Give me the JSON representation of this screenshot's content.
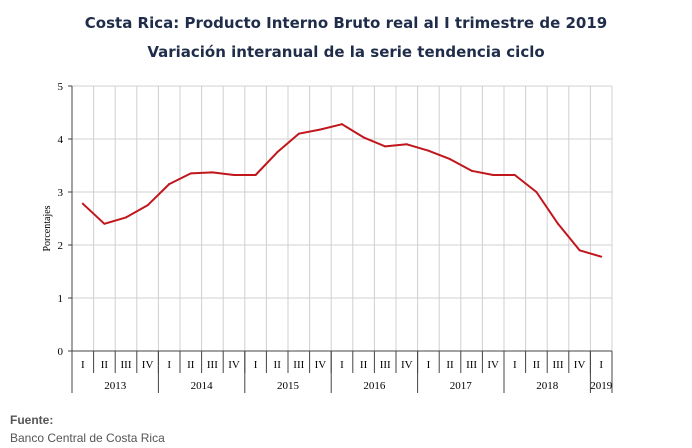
{
  "title": "Costa Rica: Producto Interno Bruto real al I trimestre de 2019",
  "subtitle": "Variación interanual de la serie tendencia ciclo",
  "source": {
    "label": "Fuente:",
    "value": "Banco Central de Costa Rica"
  },
  "chart_data": {
    "type": "line",
    "title": "Costa Rica: Producto Interno Bruto real al I trimestre de 2019",
    "subtitle": "Variación interanual de la serie tendencia ciclo",
    "ylabel": "Porcentajes",
    "xlabel": "",
    "ylim": [
      0,
      5
    ],
    "yticks": [
      0,
      1,
      2,
      3,
      4,
      5
    ],
    "grid": true,
    "line_color": "#c0161c",
    "quarters": [
      "I",
      "II",
      "III",
      "IV",
      "I",
      "II",
      "III",
      "IV",
      "I",
      "II",
      "III",
      "IV",
      "I",
      "II",
      "III",
      "IV",
      "I",
      "II",
      "III",
      "IV",
      "I",
      "II",
      "III",
      "IV",
      "I"
    ],
    "years": [
      {
        "label": "2013",
        "quarters": 4
      },
      {
        "label": "2014",
        "quarters": 4
      },
      {
        "label": "2015",
        "quarters": 4
      },
      {
        "label": "2016",
        "quarters": 4
      },
      {
        "label": "2017",
        "quarters": 4
      },
      {
        "label": "2018",
        "quarters": 4
      },
      {
        "label": "2019",
        "quarters": 1
      }
    ],
    "series": [
      {
        "values": [
          2.78,
          2.4,
          2.52,
          2.75,
          3.15,
          3.35,
          3.37,
          3.32,
          3.32,
          3.75,
          4.1,
          4.18,
          4.28,
          4.03,
          3.86,
          3.9,
          3.78,
          3.62,
          3.4,
          3.32,
          3.32,
          3.0,
          2.4,
          1.9,
          1.78
        ]
      }
    ]
  }
}
